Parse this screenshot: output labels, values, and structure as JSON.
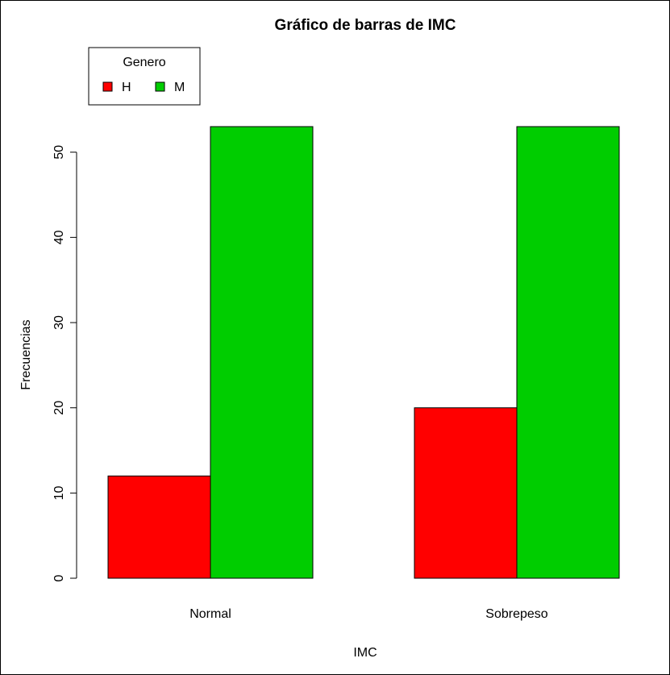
{
  "chart_data": {
    "type": "bar",
    "title": "Gráfico de barras de IMC",
    "xlabel": "IMC",
    "ylabel": "Frecuencias",
    "categories": [
      "Normal",
      "Sobrepeso"
    ],
    "series": [
      {
        "name": "H",
        "values": [
          12,
          20
        ],
        "color": "#ff0000"
      },
      {
        "name": "M",
        "values": [
          53,
          53
        ],
        "color": "#00cd00"
      }
    ],
    "ylim": [
      0,
      53
    ],
    "yticks": [
      0,
      10,
      20,
      30,
      40,
      50
    ],
    "grid": false,
    "legend": {
      "title": "Genero",
      "placement": "top-left"
    }
  }
}
